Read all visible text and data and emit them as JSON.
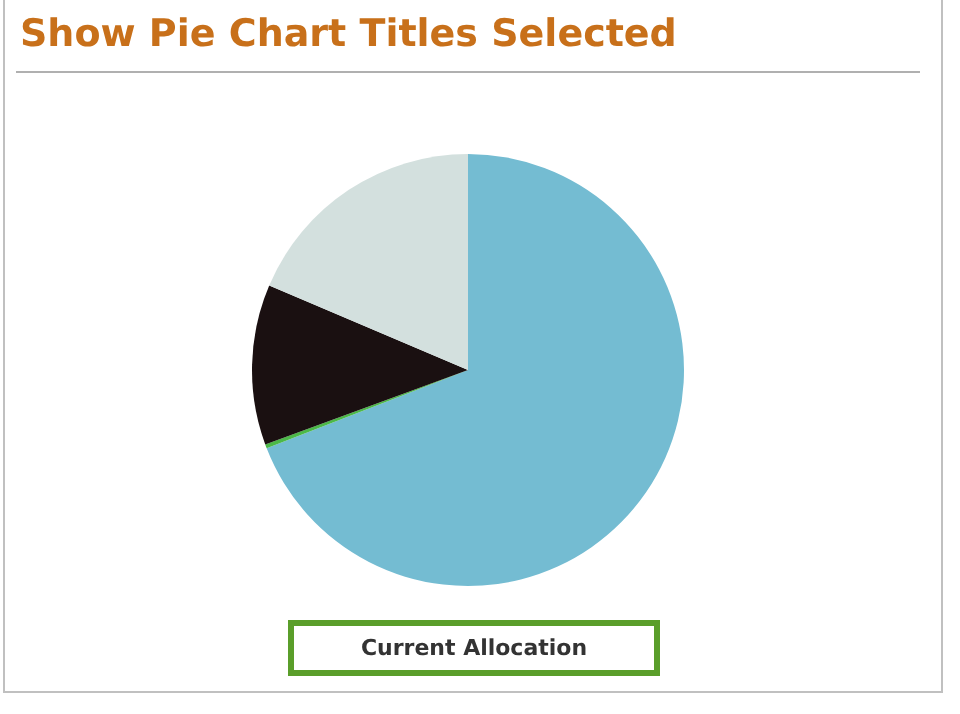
{
  "chart_data": {
    "type": "pie",
    "title": "Show Pie Chart Titles Selected",
    "subtitle": "Current Allocation",
    "categories": [
      null,
      null,
      null,
      null
    ],
    "values": [
      69.1,
      0.3,
      12.0,
      18.6
    ],
    "colors": [
      "#74bcd2",
      "#4cb848",
      "#1a1011",
      "#d3e0de"
    ],
    "legend": false
  }
}
